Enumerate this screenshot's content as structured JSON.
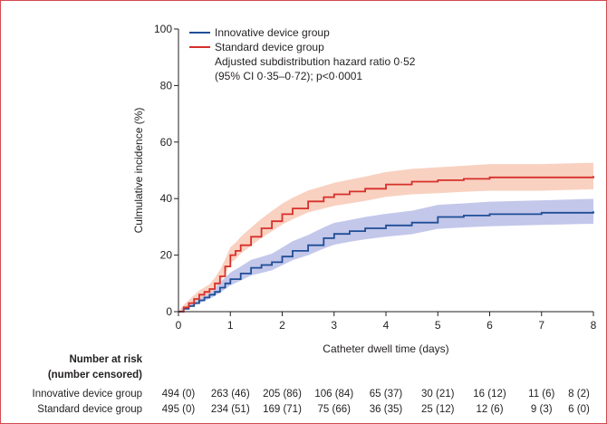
{
  "chart_data": {
    "type": "line",
    "xlabel": "Catheter dwell time (days)",
    "ylabel": "Culmulative incidence (%)",
    "xlim": [
      0,
      8
    ],
    "ylim": [
      0,
      100
    ],
    "x_ticks": [
      "0",
      "1",
      "2",
      "3",
      "4",
      "5",
      "6",
      "7",
      "8"
    ],
    "y_ticks": [
      "0",
      "20",
      "40",
      "60",
      "80",
      "100"
    ],
    "grid": false,
    "legend_position": "top-left",
    "annotation": [
      "Adjusted subdistribution hazard ratio 0·52",
      "(95% CI 0·35–0·72); p<0·0001"
    ],
    "series": [
      {
        "name": "Innovative device group",
        "color": "#1f4e96",
        "band_color": "#b8bde6",
        "x": [
          0,
          0.1,
          0.2,
          0.3,
          0.4,
          0.5,
          0.6,
          0.7,
          0.8,
          0.9,
          1.0,
          1.2,
          1.4,
          1.6,
          1.8,
          2.0,
          2.2,
          2.5,
          2.8,
          3.0,
          3.3,
          3.6,
          4.0,
          4.5,
          5.0,
          5.5,
          6.0,
          7.0,
          8.0
        ],
        "y": [
          0,
          1,
          2,
          3,
          4,
          5,
          6,
          7,
          8.5,
          10,
          11.5,
          13.5,
          15.5,
          16.5,
          17.5,
          19.5,
          21.5,
          23.5,
          26,
          27.5,
          28.5,
          29.5,
          30.5,
          31.5,
          33.5,
          34,
          34.5,
          35,
          35.5
        ],
        "lower": [
          0,
          0.5,
          1.3,
          2.2,
          3,
          3.8,
          4.6,
          5.5,
          6.7,
          8,
          9.3,
          11,
          12.8,
          13.7,
          14.6,
          16.4,
          18.2,
          20,
          22.3,
          23.7,
          24.7,
          25.6,
          26.5,
          27.4,
          29.3,
          29.8,
          30.2,
          30.7,
          31.1
        ],
        "upper": [
          0,
          1.6,
          2.8,
          3.9,
          5.1,
          6.3,
          7.5,
          8.6,
          10.4,
          12.1,
          13.8,
          16,
          18.3,
          19.4,
          20.5,
          22.7,
          24.9,
          27.1,
          29.8,
          31.4,
          32.4,
          33.5,
          34.6,
          35.7,
          37.8,
          38.3,
          38.9,
          39.4,
          39.9
        ]
      },
      {
        "name": "Standard device group",
        "color": "#d7302b",
        "band_color": "#f8c9b6",
        "x": [
          0,
          0.1,
          0.2,
          0.3,
          0.4,
          0.5,
          0.6,
          0.7,
          0.8,
          0.9,
          1.0,
          1.1,
          1.2,
          1.4,
          1.6,
          1.8,
          2.0,
          2.2,
          2.5,
          2.8,
          3.0,
          3.3,
          3.6,
          4.0,
          4.5,
          5.0,
          5.5,
          6.0,
          7.0,
          8.0
        ],
        "y": [
          0,
          1.5,
          3,
          4.5,
          6,
          7,
          8,
          10,
          12.5,
          16,
          20,
          21.5,
          23.5,
          26.5,
          29.5,
          32,
          34.5,
          36.5,
          39,
          40.5,
          41.5,
          42.5,
          43.5,
          45,
          46,
          46.5,
          47,
          47.5,
          47.5,
          48
        ],
        "lower": [
          0,
          0.7,
          1.9,
          3.2,
          4.5,
          5.4,
          6.3,
          8,
          10.3,
          13.5,
          17.2,
          18.6,
          20.5,
          23.3,
          26.1,
          28.4,
          30.8,
          32.7,
          35.1,
          36.5,
          37.4,
          38.3,
          39.2,
          40.6,
          41.5,
          41.9,
          42.4,
          42.8,
          42.8,
          43.3
        ],
        "upper": [
          0,
          2.3,
          4.1,
          5.8,
          7.5,
          8.6,
          9.7,
          12,
          14.7,
          18.5,
          22.8,
          24.4,
          26.5,
          29.7,
          32.9,
          35.6,
          38.2,
          40.3,
          42.9,
          44.5,
          45.6,
          46.7,
          47.8,
          49.4,
          50.5,
          51.1,
          51.6,
          52.2,
          52.2,
          52.7
        ]
      }
    ]
  },
  "risk_table": {
    "title_line1": "Number at risk",
    "title_line2": "(number censored)",
    "rows": [
      {
        "group": "Innovative device group",
        "values": [
          "494 (0)",
          "263 (46)",
          "205 (86)",
          "106 (84)",
          "65 (37)",
          "30 (21)",
          "16 (12)",
          "11 (6)",
          "8 (2)"
        ]
      },
      {
        "group": "Standard device group",
        "values": [
          "495 (0)",
          "234 (51)",
          "169 (71)",
          "75 (66)",
          "36 (35)",
          "25 (12)",
          "12 (6)",
          "9 (3)",
          "6 (0)"
        ]
      }
    ]
  }
}
